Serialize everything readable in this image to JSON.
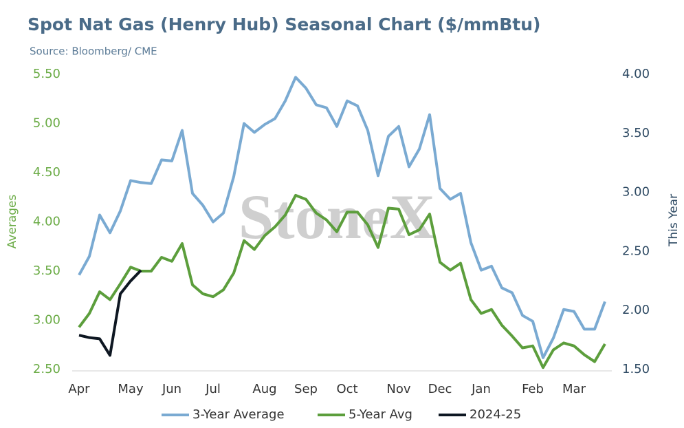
{
  "chart_data": {
    "type": "line",
    "title": "Spot Nat Gas (Henry Hub) Seasonal Chart ($/mmBtu)",
    "subtitle": "Source: Bloomberg/ CME",
    "watermark": "StoneX",
    "y_label": "Averages",
    "y2_label": "This Year",
    "categories": [
      "Apr",
      null,
      null,
      null,
      null,
      "May",
      null,
      null,
      null,
      "Jun",
      null,
      null,
      null,
      "Jul",
      null,
      null,
      null,
      null,
      "Aug",
      null,
      null,
      null,
      "Sep",
      null,
      null,
      null,
      "Oct",
      null,
      null,
      null,
      null,
      "Nov",
      null,
      null,
      null,
      "Dec",
      null,
      null,
      null,
      "Jan",
      null,
      null,
      null,
      null,
      "Feb",
      null,
      null,
      null,
      "Mar",
      null,
      null,
      null
    ],
    "ylim": [
      2.5,
      5.5
    ],
    "yticks": [
      {
        "value": 2.5,
        "label": "2.50"
      },
      {
        "value": 3,
        "label": "3.00"
      },
      {
        "value": 3.5,
        "label": "3.50"
      },
      {
        "value": 4,
        "label": "4.00"
      },
      {
        "value": 4.5,
        "label": "4.50"
      },
      {
        "value": 5,
        "label": "5.00"
      },
      {
        "value": 5.5,
        "label": "5.50"
      }
    ],
    "y2lim": [
      1.5,
      4.0
    ],
    "y2ticks": [
      {
        "value": 1.5,
        "label": "1.50"
      },
      {
        "value": 2,
        "label": "2.00"
      },
      {
        "value": 2.5,
        "label": "2.50"
      },
      {
        "value": 3,
        "label": "3.00"
      },
      {
        "value": 3.5,
        "label": "3.50"
      },
      {
        "value": 4,
        "label": "4.00"
      }
    ],
    "legend": "bottom",
    "series": [
      {
        "name": "3-Year Average",
        "color": "#7aaad2",
        "values": [
          3.46,
          3.65,
          4.07,
          3.89,
          4.11,
          4.42,
          4.4,
          4.39,
          4.63,
          4.62,
          4.93,
          4.29,
          4.17,
          4.0,
          4.09,
          4.46,
          5.0,
          4.91,
          4.99,
          5.05,
          5.23,
          5.47,
          5.36,
          5.19,
          5.16,
          4.97,
          5.23,
          5.18,
          4.93,
          4.47,
          4.87,
          4.97,
          4.56,
          4.74,
          5.09,
          4.34,
          4.23,
          4.29,
          3.79,
          3.51,
          3.55,
          3.33,
          3.28,
          3.05,
          2.99,
          2.62,
          2.82,
          3.11,
          3.09,
          2.91,
          2.91,
          3.19
        ]
      },
      {
        "name": "5-Year Avg",
        "color": "#5c9e3c",
        "values": [
          2.93,
          3.07,
          3.29,
          3.21,
          3.37,
          3.54,
          3.5,
          3.5,
          3.64,
          3.6,
          3.78,
          3.36,
          3.27,
          3.24,
          3.31,
          3.48,
          3.81,
          3.72,
          3.86,
          3.95,
          4.07,
          4.27,
          4.23,
          4.09,
          4.02,
          3.9,
          4.1,
          4.1,
          3.97,
          3.74,
          4.14,
          4.13,
          3.87,
          3.92,
          4.08,
          3.59,
          3.51,
          3.58,
          3.21,
          3.07,
          3.11,
          2.95,
          2.84,
          2.72,
          2.74,
          2.52,
          2.7,
          2.77,
          2.74,
          2.65,
          2.58,
          2.76
        ]
      },
      {
        "name": "2024-25",
        "color": "#0e1722",
        "axis": "y2",
        "values": [
          1.79,
          1.77,
          1.76,
          1.62,
          2.14,
          2.25,
          2.34,
          null,
          null,
          null,
          null,
          null,
          null,
          null,
          null,
          null,
          null,
          null,
          null,
          null,
          null,
          null,
          null,
          null,
          null,
          null,
          null,
          null,
          null,
          null,
          null,
          null,
          null,
          null,
          null,
          null,
          null,
          null,
          null,
          null,
          null,
          null,
          null,
          null,
          null,
          null,
          null,
          null,
          null,
          null,
          null,
          null
        ]
      }
    ]
  }
}
